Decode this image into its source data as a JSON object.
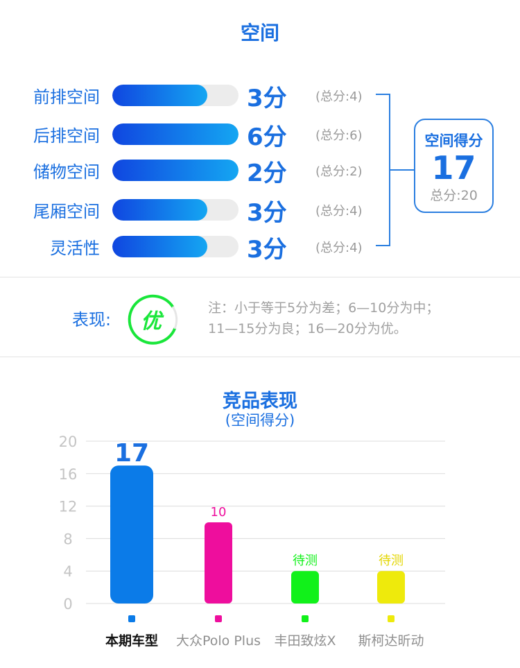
{
  "space": {
    "title": "空间",
    "items": [
      {
        "label": "前排空间",
        "score": "3分",
        "total": "(总分:4)",
        "fraction": 0.75
      },
      {
        "label": "后排空间",
        "score": "6分",
        "total": "(总分:6)",
        "fraction": 1.0
      },
      {
        "label": "储物空间",
        "score": "2分",
        "total": "(总分:2)",
        "fraction": 1.0
      },
      {
        "label": "尾厢空间",
        "score": "3分",
        "total": "(总分:4)",
        "fraction": 0.75
      },
      {
        "label": "灵活性",
        "score": "3分",
        "total": "(总分:4)",
        "fraction": 0.75
      }
    ],
    "summary": {
      "title": "空间得分",
      "score": "17",
      "total": "总分:20"
    }
  },
  "performance": {
    "label": "表现:",
    "grade": "优",
    "grade_color": "#19e63a",
    "note_line1": "注：小于等于5分为差；6—10分为中；",
    "note_line2": "11—15分为良；16—20分为优。"
  },
  "chart_data": {
    "type": "bar",
    "title": "竞品表现",
    "subtitle": "(空间得分)",
    "ylim": [
      0,
      20
    ],
    "yticks": [
      0,
      4,
      8,
      12,
      16,
      20
    ],
    "grid": true,
    "categories": [
      "本期车型",
      "大众Polo Plus",
      "丰田致炫X",
      "斯柯达昕动"
    ],
    "values": [
      17,
      10,
      4,
      4
    ],
    "data_labels": [
      "17",
      "10",
      "待测",
      "待测"
    ],
    "colors": [
      "#0b7be8",
      "#ee0e9d",
      "#11f11a",
      "#eeea0c"
    ]
  }
}
